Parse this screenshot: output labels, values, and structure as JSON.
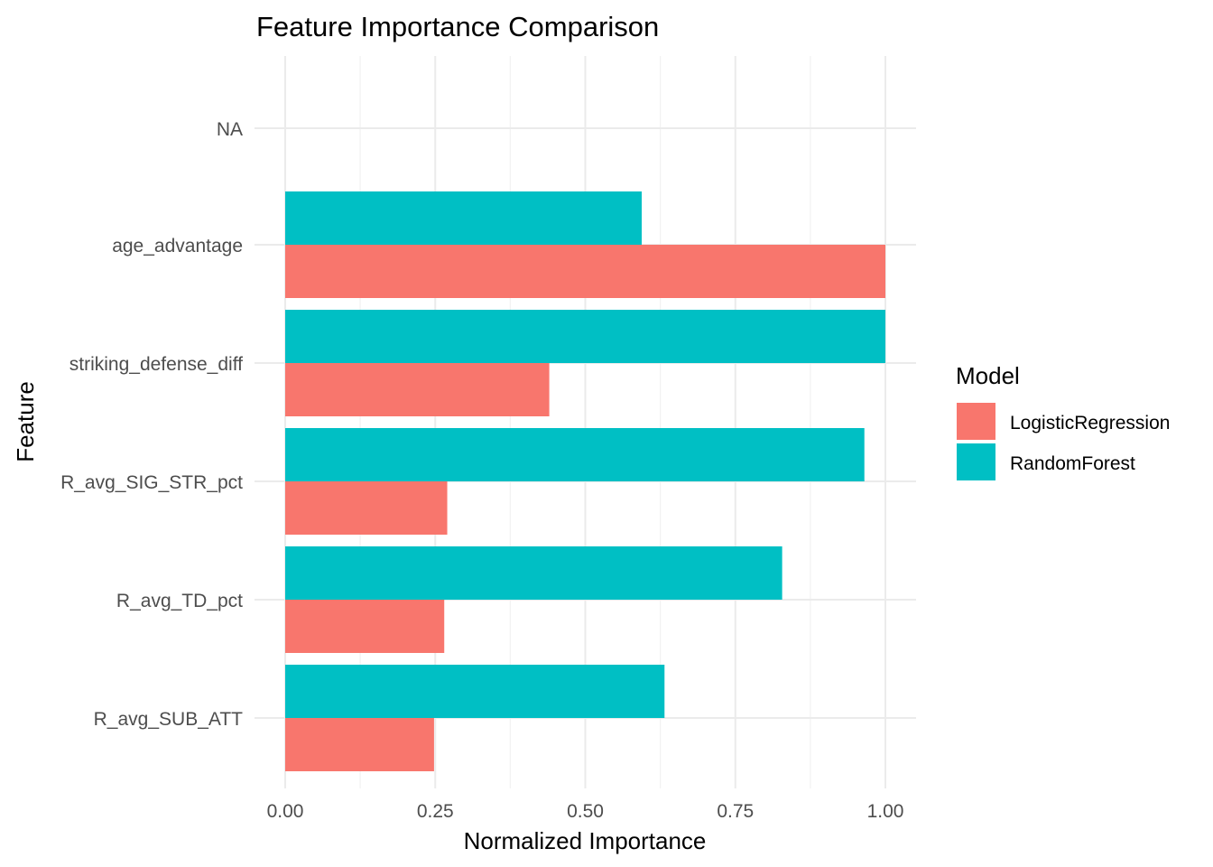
{
  "chart_data": {
    "type": "bar",
    "orientation": "horizontal",
    "title": "Feature Importance Comparison",
    "xlabel": "Normalized Importance",
    "ylabel": "Feature",
    "xlim": [
      0,
      1.05
    ],
    "x_ticks": [
      "0.00",
      "0.25",
      "0.50",
      "0.75",
      "1.00"
    ],
    "x_tick_values": [
      0,
      0.25,
      0.5,
      0.75,
      1.0
    ],
    "categories": [
      "NA",
      "age_advantage",
      "striking_defense_diff",
      "R_avg_SIG_STR_pct",
      "R_avg_TD_pct",
      "R_avg_SUB_ATT"
    ],
    "series": [
      {
        "name": "LogisticRegression",
        "color": "#F8766D",
        "values": [
          null,
          1.0,
          0.44,
          0.27,
          0.265,
          0.248
        ]
      },
      {
        "name": "RandomForest",
        "color": "#00BFC4",
        "values": [
          null,
          0.594,
          1.0,
          0.965,
          0.828,
          0.632
        ]
      }
    ],
    "legend": {
      "title": "Model",
      "position": "right"
    },
    "grid": true
  }
}
